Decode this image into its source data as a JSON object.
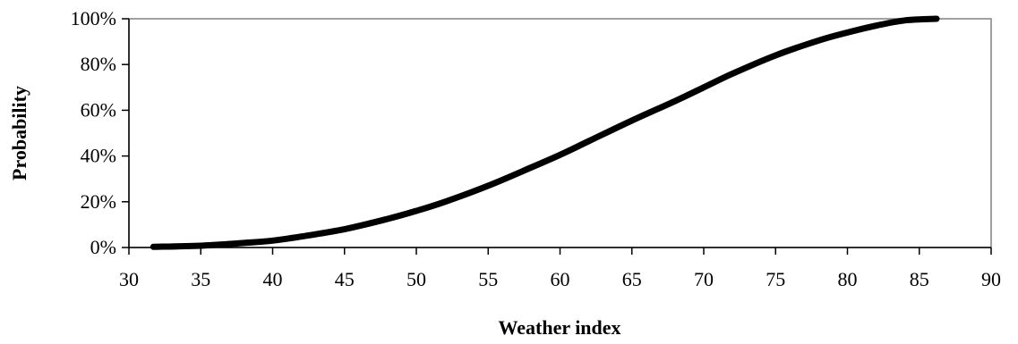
{
  "chart_data": {
    "type": "line",
    "title": "",
    "xlabel": "Weather index",
    "ylabel": "Probability",
    "xlim": [
      30,
      90
    ],
    "ylim": [
      0,
      100
    ],
    "x_ticks": [
      30,
      35,
      40,
      45,
      50,
      55,
      60,
      65,
      70,
      75,
      80,
      85,
      90
    ],
    "y_ticks": [
      0,
      20,
      40,
      60,
      80,
      100
    ],
    "y_tick_labels": [
      "0%",
      "20%",
      "40%",
      "60%",
      "80%",
      "100%"
    ],
    "grid": false,
    "legend": "none",
    "series": [
      {
        "color": "#000000",
        "x": [
          31.7,
          35,
          38,
          40,
          42,
          45,
          48,
          50,
          52,
          55,
          58,
          60,
          62,
          65,
          68,
          70,
          72,
          75,
          78,
          80,
          82,
          84,
          86.2
        ],
        "y": [
          0.3,
          0.8,
          2.0,
          3.0,
          4.8,
          8.0,
          12.5,
          16.0,
          20.0,
          27.0,
          35.0,
          40.5,
          46.5,
          55.5,
          64.0,
          70.0,
          76.0,
          84.0,
          90.5,
          94.0,
          97.0,
          99.3,
          100
        ]
      }
    ]
  }
}
